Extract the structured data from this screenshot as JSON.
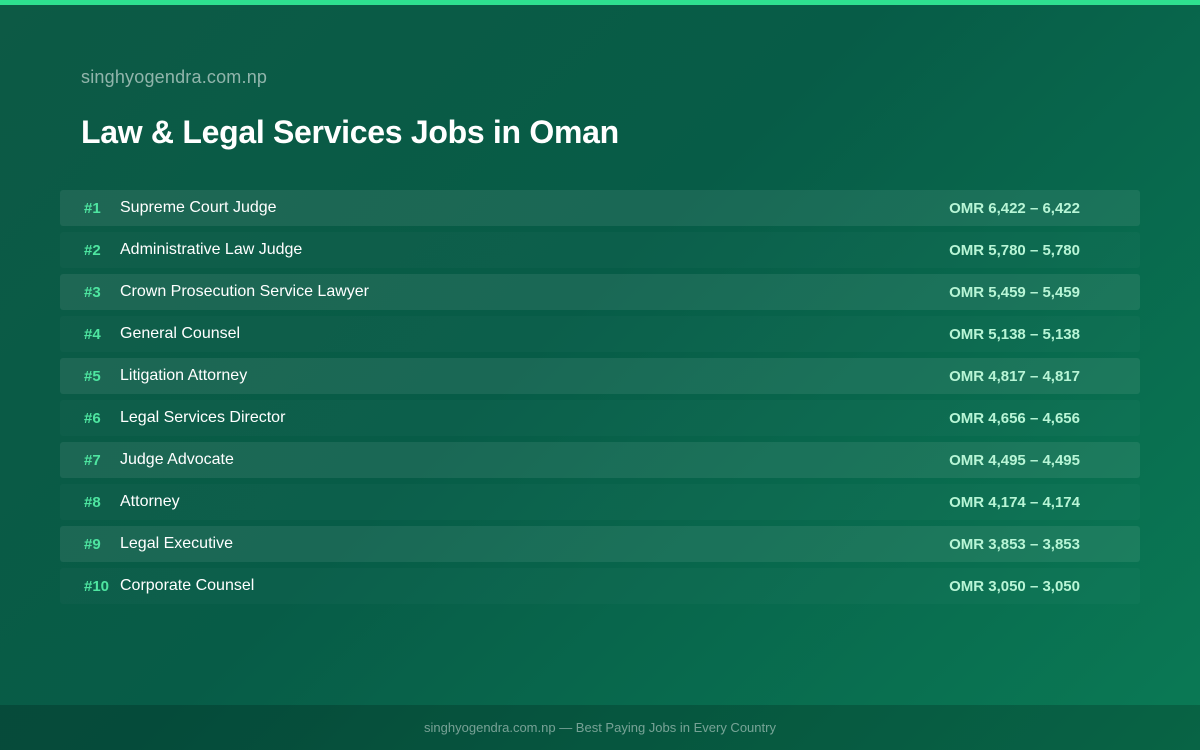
{
  "colors": {
    "accent": "#2ee08f",
    "rank": "#4ee5a0",
    "salary": "#b8f5d6",
    "background": "#075c47"
  },
  "header": {
    "site_name": "singhyogendra.com.np",
    "title": "Law & Legal Services Jobs in Oman"
  },
  "jobs": [
    {
      "rank": "#1",
      "title": "Supreme Court Judge",
      "salary": "OMR 6,422 – 6,422"
    },
    {
      "rank": "#2",
      "title": "Administrative Law Judge",
      "salary": "OMR 5,780 – 5,780"
    },
    {
      "rank": "#3",
      "title": "Crown Prosecution Service Lawyer",
      "salary": "OMR 5,459 – 5,459"
    },
    {
      "rank": "#4",
      "title": "General Counsel",
      "salary": "OMR 5,138 – 5,138"
    },
    {
      "rank": "#5",
      "title": "Litigation Attorney",
      "salary": "OMR 4,817 – 4,817"
    },
    {
      "rank": "#6",
      "title": "Legal Services Director",
      "salary": "OMR 4,656 – 4,656"
    },
    {
      "rank": "#7",
      "title": "Judge Advocate",
      "salary": "OMR 4,495 – 4,495"
    },
    {
      "rank": "#8",
      "title": "Attorney",
      "salary": "OMR 4,174 – 4,174"
    },
    {
      "rank": "#9",
      "title": "Legal Executive",
      "salary": "OMR 3,853 – 3,853"
    },
    {
      "rank": "#10",
      "title": "Corporate Counsel",
      "salary": "OMR 3,050 – 3,050"
    }
  ],
  "footer": {
    "text": "singhyogendra.com.np — Best Paying Jobs in Every Country"
  }
}
